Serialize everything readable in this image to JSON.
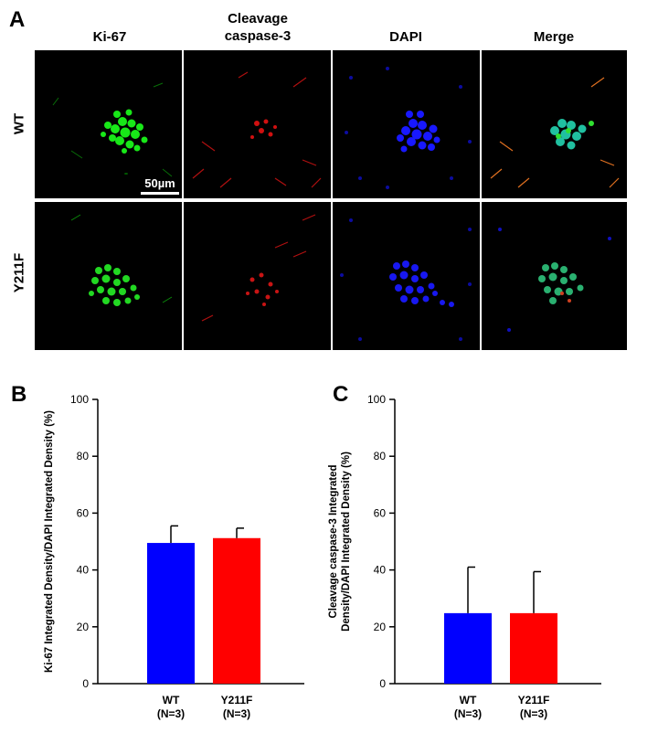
{
  "panels": {
    "a": "A",
    "b": "B",
    "c": "C"
  },
  "columns": [
    "Ki-67",
    "Cleavage\ncaspase-3",
    "DAPI",
    "Merge"
  ],
  "rows": [
    "WT",
    "Y211F"
  ],
  "scale_bar": "50µm",
  "colors": {
    "wt": "#0000ff",
    "y211f": "#ff0000",
    "ki67": "#00e000",
    "caspase": "#e01010",
    "dapi": "#1010ff"
  },
  "chart_data": [
    {
      "type": "bar",
      "categories": [
        "WT\n(N=3)",
        "Y211F\n(N=3)"
      ],
      "values": [
        49.5,
        51.2
      ],
      "errors": [
        6.0,
        3.5
      ],
      "ylabel": "Ki-67 Integrated Density/DAPI Integrated Density (%)",
      "ylim": [
        0,
        100
      ],
      "yticks": [
        0,
        20,
        40,
        60,
        80,
        100
      ],
      "colors": [
        "#0000ff",
        "#ff0000"
      ]
    },
    {
      "type": "bar",
      "categories": [
        "WT\n(N=3)",
        "Y211F\n(N=3)"
      ],
      "values": [
        24.8,
        24.8
      ],
      "errors": [
        16.2,
        14.6
      ],
      "ylabel": "Cleavage caspase-3 Integrated\nDensity/DAPI Integrated Density (%)",
      "ylim": [
        0,
        100
      ],
      "yticks": [
        0,
        20,
        40,
        60,
        80,
        100
      ],
      "colors": [
        "#0000ff",
        "#ff0000"
      ]
    }
  ]
}
